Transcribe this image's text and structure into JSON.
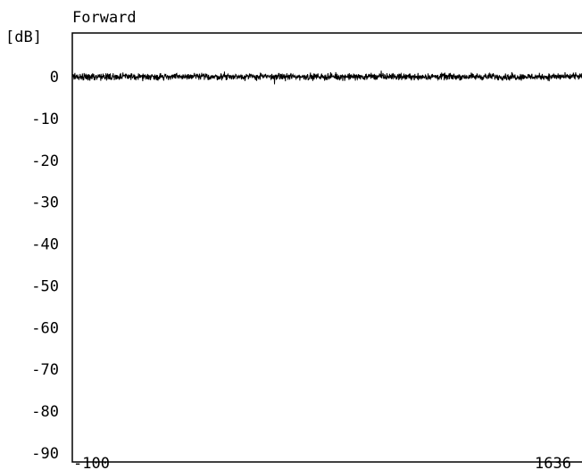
{
  "chart_data": {
    "type": "line",
    "title": "Forward",
    "ylabel": "[dB]",
    "xlabel": "",
    "xlim": [
      -100,
      1636
    ],
    "ylim": [
      -90,
      0
    ],
    "yticks": [
      0,
      -10,
      -20,
      -30,
      -40,
      -50,
      -60,
      -70,
      -80,
      -90
    ],
    "ytick_labels": [
      "0",
      "-10",
      "-20",
      "-30",
      "-40",
      "-50",
      "-60",
      "-70",
      "-80",
      "-90"
    ],
    "xtick_labels": [
      "-100",
      "1636"
    ],
    "grid": false,
    "legend": "none",
    "series": [
      {
        "style": "noisy flat trace",
        "level_db": 0,
        "noise_band_db": [
          -1.5,
          1.5
        ],
        "color": "#000000"
      }
    ]
  },
  "colors": {
    "background": "#ffffff",
    "foreground": "#000000"
  }
}
